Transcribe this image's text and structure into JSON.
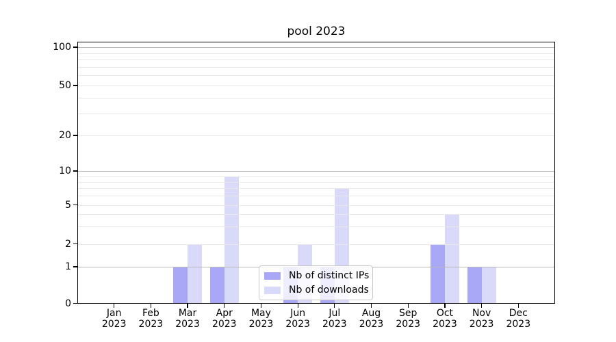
{
  "title": "pool 2023",
  "chart_data": {
    "type": "bar",
    "title": "pool 2023",
    "categories": [
      "Jan 2023",
      "Feb 2023",
      "Mar 2023",
      "Apr 2023",
      "May 2023",
      "Jun 2023",
      "Jul 2023",
      "Aug 2023",
      "Sep 2023",
      "Oct 2023",
      "Nov 2023",
      "Dec 2023"
    ],
    "series": [
      {
        "name": "Nb of distinct IPs",
        "color": "#a8a8f7",
        "values": [
          0,
          0,
          1,
          1,
          0,
          1,
          1,
          0,
          0,
          2,
          1,
          0
        ]
      },
      {
        "name": "Nb of downloads",
        "color": "#d9d9fa",
        "values": [
          0,
          0,
          2,
          9,
          0,
          2,
          7,
          0,
          0,
          4,
          1,
          0
        ]
      }
    ],
    "xlabel": "",
    "ylabel": "",
    "yscale": "symlog",
    "yticks": [
      0,
      1,
      2,
      5,
      10,
      20,
      50,
      100
    ],
    "ylim": [
      0,
      110
    ],
    "grid": true,
    "legend_position": "lower center"
  },
  "style": {
    "major_grid_color": "#b8b8b8",
    "minor_grid_color": "#e8e8e8",
    "axis_color": "#000000",
    "background": "#ffffff"
  }
}
